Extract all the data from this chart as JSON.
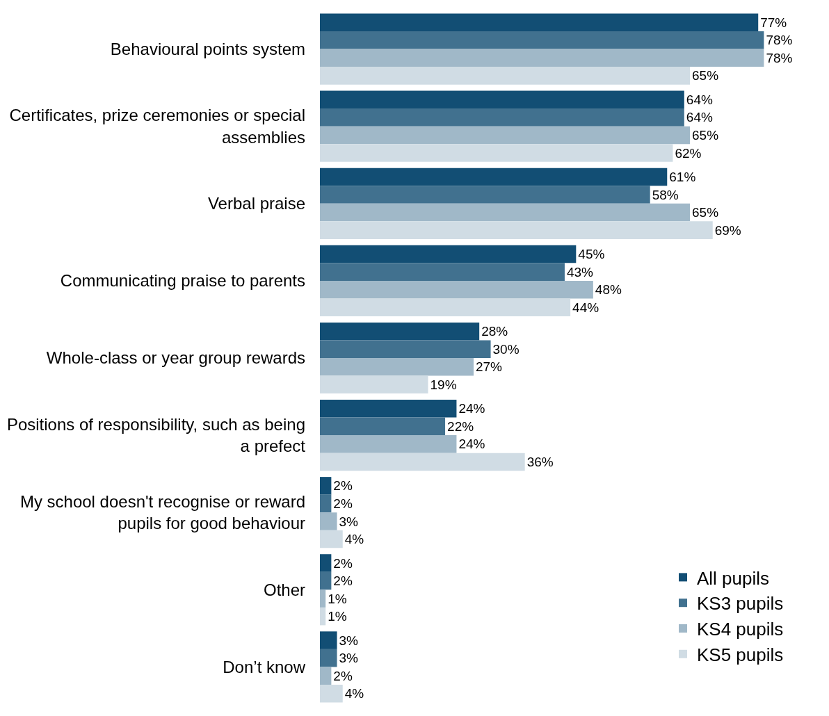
{
  "chart_data": {
    "type": "bar",
    "orientation": "horizontal",
    "legend": "bottom right",
    "categories": [
      "Behavioural points system",
      "Certificates, prize ceremonies or special assemblies",
      "Verbal praise",
      "Communicating praise to parents",
      "Whole-class or year group rewards",
      "Positions of responsibility, such as being a prefect",
      "My school doesn't recognise or reward pupils for good behaviour",
      "Other",
      "Don’t know"
    ],
    "series": [
      {
        "name": "All pupils",
        "color": "#124e74",
        "values": [
          77,
          64,
          61,
          45,
          28,
          24,
          2,
          2,
          3
        ],
        "value_labels": [
          "77%",
          "64%",
          "61%",
          "45%",
          "28%",
          "24%",
          "2%",
          "2%",
          "3%"
        ]
      },
      {
        "name": "KS3 pupils",
        "color": "#41718f",
        "values": [
          78,
          64,
          58,
          43,
          30,
          22,
          2,
          2,
          3
        ],
        "value_labels": [
          "78%",
          "64%",
          "58%",
          "43%",
          "30%",
          "22%",
          "2%",
          "2%",
          "3%"
        ]
      },
      {
        "name": "KS4 pupils",
        "color": "#a0b8c8",
        "values": [
          78,
          65,
          65,
          48,
          27,
          24,
          3,
          1,
          2
        ],
        "value_labels": [
          "78%",
          "65%",
          "65%",
          "48%",
          "27%",
          "24%",
          "3%",
          "1%",
          "2%"
        ]
      },
      {
        "name": "KS5 pupils",
        "color": "#d0dce4",
        "values": [
          65,
          62,
          69,
          44,
          19,
          36,
          4,
          1,
          4
        ],
        "value_labels": [
          "65%",
          "62%",
          "69%",
          "44%",
          "19%",
          "36%",
          "4%",
          "1%",
          "4%"
        ]
      }
    ]
  }
}
